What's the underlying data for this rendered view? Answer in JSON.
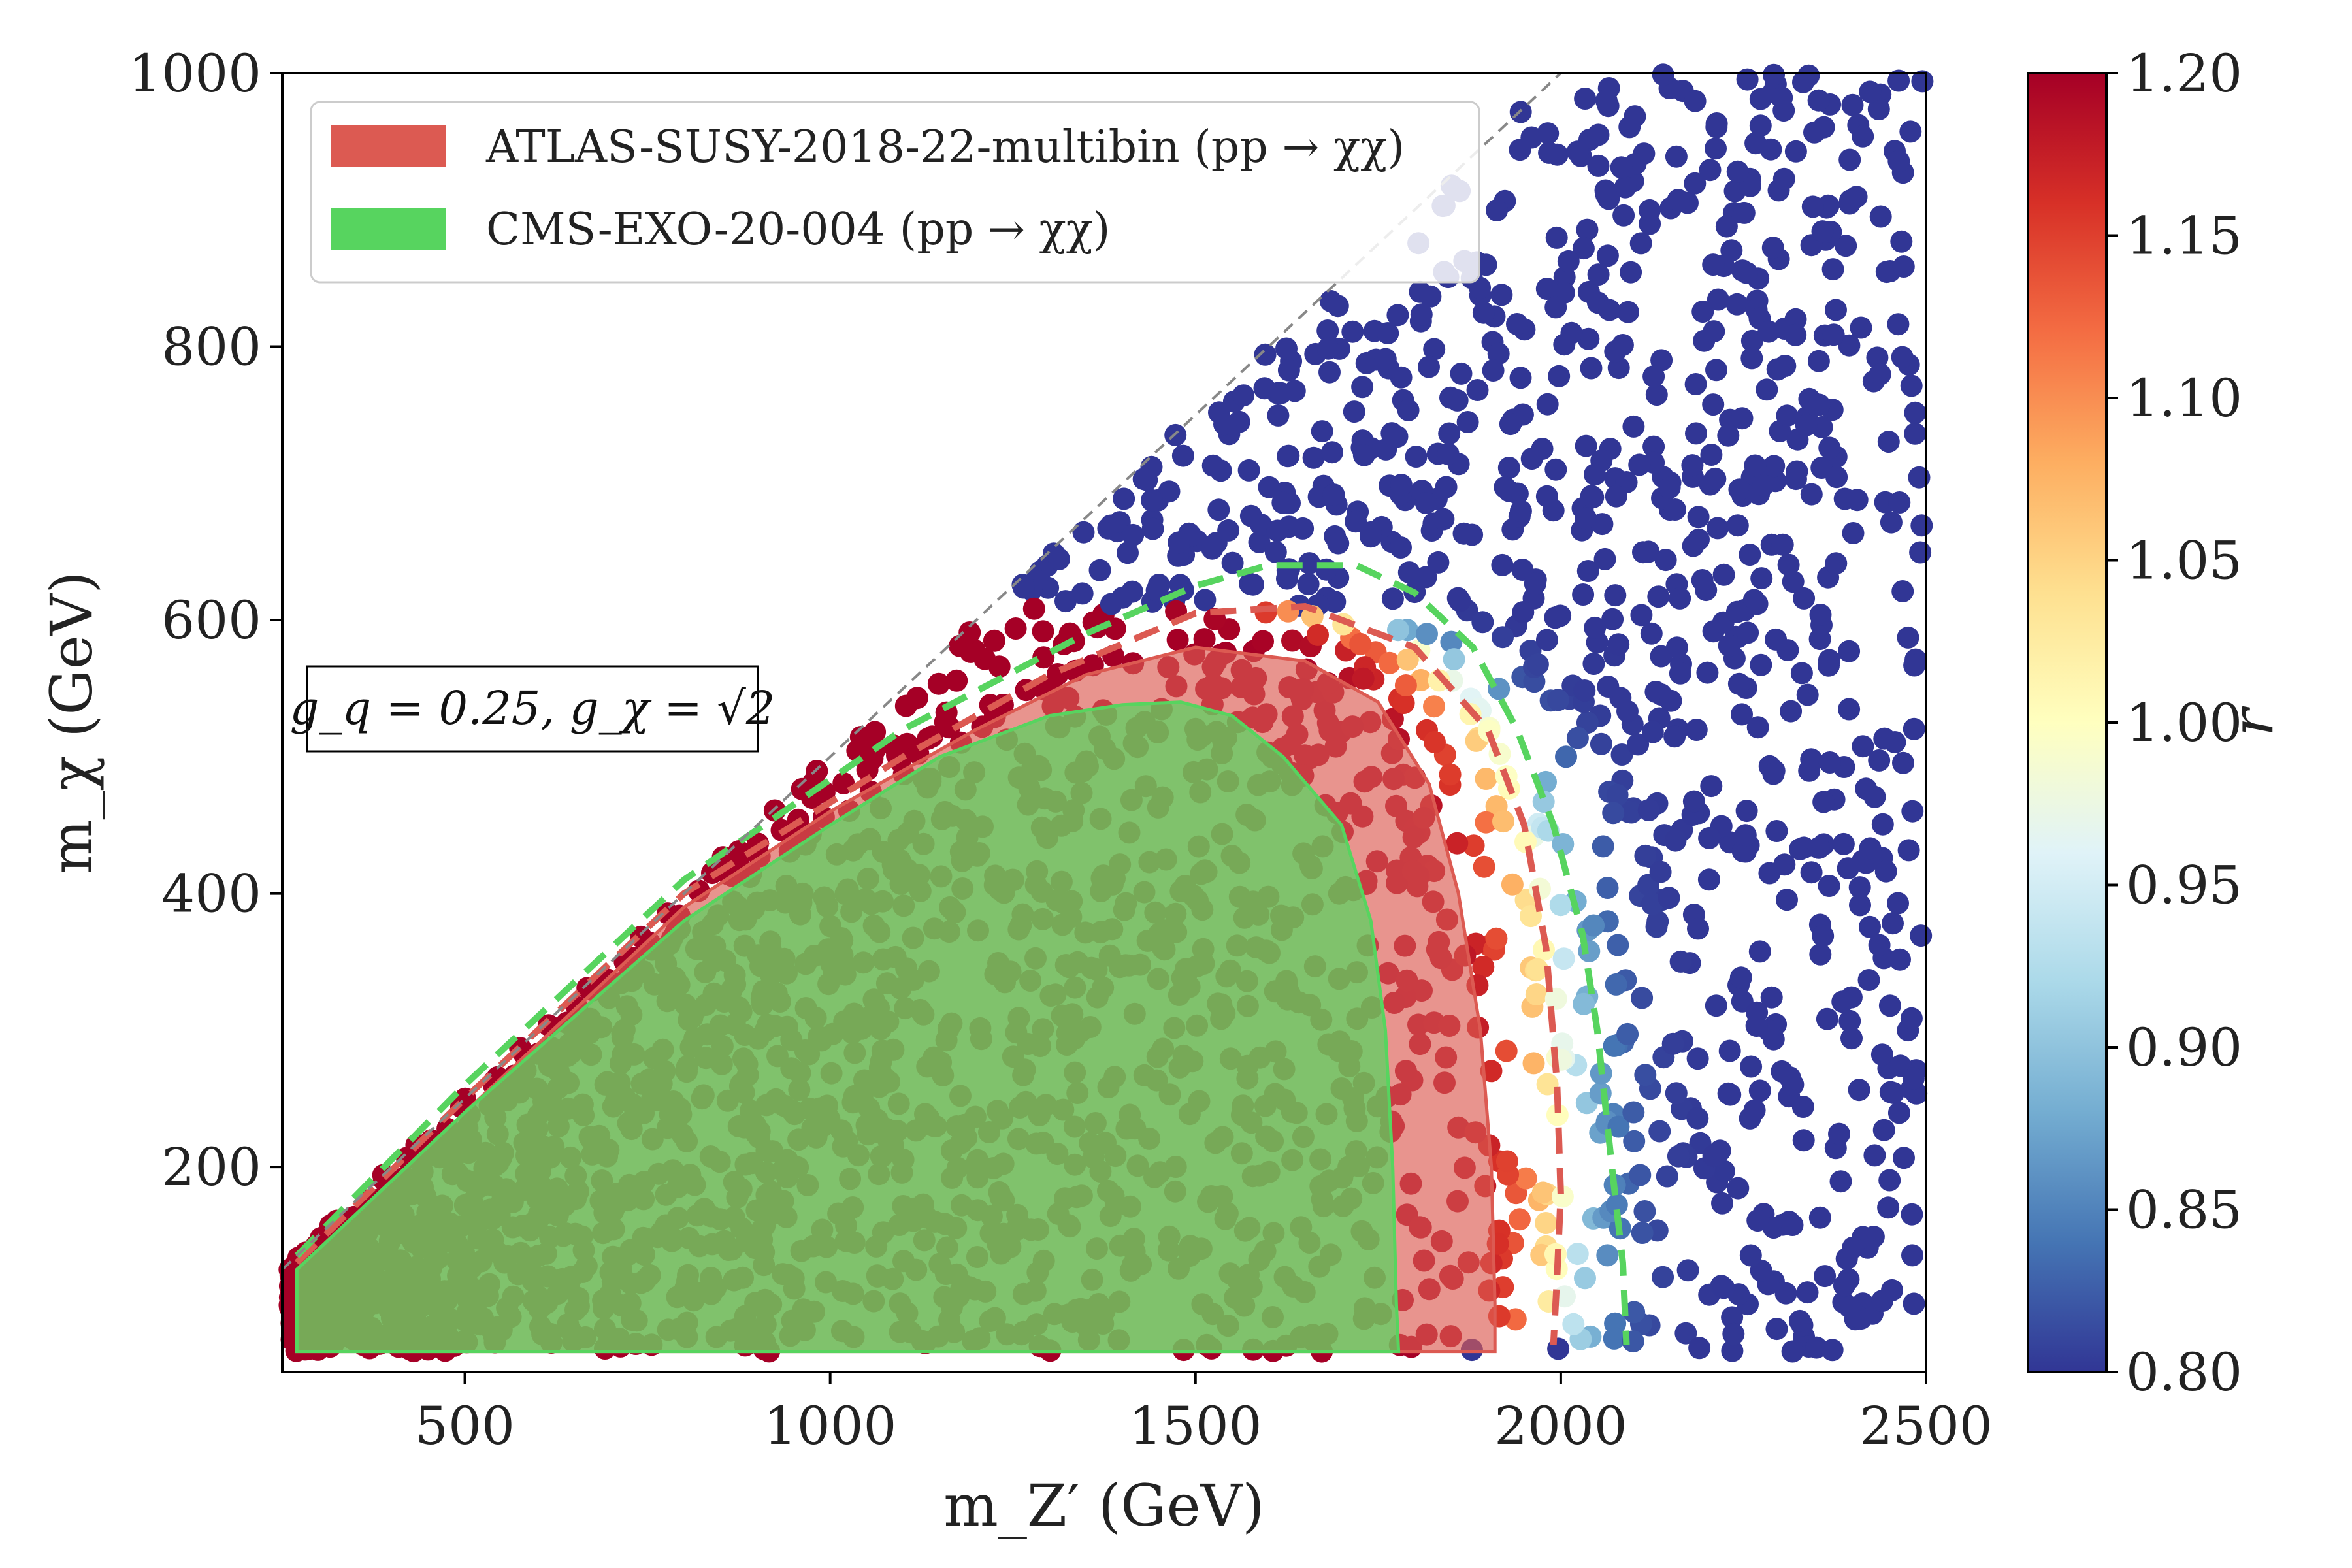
{
  "chart_data": {
    "type": "scatter",
    "xlabel": "m_Z′ (GeV)",
    "ylabel": "m_χ (GeV)",
    "colorbar_label": "r",
    "xlim": [
      250,
      2500
    ],
    "ylim": [
      50,
      1000
    ],
    "x_ticks": [
      "500",
      "1000",
      "1500",
      "2000",
      "2500"
    ],
    "y_ticks": [
      "200",
      "400",
      "600",
      "800",
      "1000"
    ],
    "colorbar_range": [
      0.8,
      1.2
    ],
    "colorbar_ticks": [
      "0.80",
      "0.85",
      "0.90",
      "0.95",
      "1.00",
      "1.05",
      "1.10",
      "1.15",
      "1.20"
    ],
    "colormap": "RdYlBu_r",
    "grid": false,
    "legend_position": "top-left",
    "annotation": "g_q = 0.25, g_χ = √2",
    "diagonal": {
      "style": "dashed",
      "color": "#888888",
      "points": [
        [
          250,
          125
        ],
        [
          2500,
          1250
        ]
      ]
    },
    "series": [
      {
        "name": "ATLAS-SUSY-2018-22-multibin (pp → χχ)",
        "color": "#dc5a52",
        "excluded_region": [
          [
            270,
            65
          ],
          [
            270,
            125
          ],
          [
            500,
            240
          ],
          [
            800,
            390
          ],
          [
            1000,
            460
          ],
          [
            1200,
            520
          ],
          [
            1350,
            560
          ],
          [
            1500,
            580
          ],
          [
            1650,
            570
          ],
          [
            1750,
            540
          ],
          [
            1820,
            480
          ],
          [
            1860,
            400
          ],
          [
            1890,
            300
          ],
          [
            1905,
            200
          ],
          [
            1910,
            100
          ],
          [
            1910,
            65
          ]
        ],
        "expected_contour": [
          [
            270,
            130
          ],
          [
            500,
            250
          ],
          [
            800,
            400
          ],
          [
            1100,
            500
          ],
          [
            1300,
            560
          ],
          [
            1500,
            605
          ],
          [
            1650,
            610
          ],
          [
            1800,
            580
          ],
          [
            1900,
            520
          ],
          [
            1950,
            450
          ],
          [
            1980,
            360
          ],
          [
            1995,
            260
          ],
          [
            2000,
            180
          ],
          [
            1995,
            120
          ],
          [
            1990,
            70
          ]
        ]
      },
      {
        "name": "CMS-EXO-20-004 (pp → χχ)",
        "color": "#57d45f",
        "excluded_region": [
          [
            270,
            65
          ],
          [
            270,
            125
          ],
          [
            500,
            240
          ],
          [
            800,
            380
          ],
          [
            1000,
            450
          ],
          [
            1150,
            500
          ],
          [
            1300,
            530
          ],
          [
            1400,
            538
          ],
          [
            1480,
            540
          ],
          [
            1550,
            530
          ],
          [
            1620,
            500
          ],
          [
            1700,
            450
          ],
          [
            1740,
            380
          ],
          [
            1760,
            300
          ],
          [
            1770,
            200
          ],
          [
            1775,
            100
          ],
          [
            1778,
            65
          ]
        ],
        "expected_contour": [
          [
            270,
            135
          ],
          [
            500,
            260
          ],
          [
            800,
            410
          ],
          [
            1100,
            520
          ],
          [
            1350,
            590
          ],
          [
            1500,
            625
          ],
          [
            1600,
            640
          ],
          [
            1720,
            640
          ],
          [
            1800,
            620
          ],
          [
            1880,
            580
          ],
          [
            1940,
            520
          ],
          [
            1990,
            450
          ],
          [
            2030,
            370
          ],
          [
            2050,
            300
          ],
          [
            2070,
            200
          ],
          [
            2085,
            130
          ],
          [
            2090,
            70
          ]
        ]
      }
    ]
  }
}
